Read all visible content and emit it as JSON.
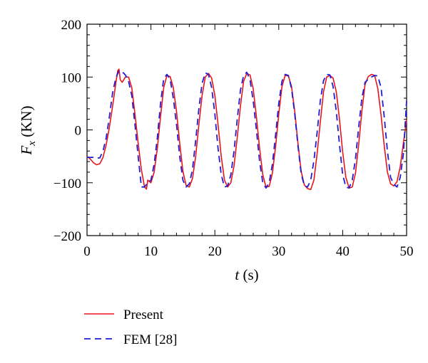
{
  "chart_data": {
    "type": "line",
    "xlabel": {
      "var": "t",
      "unit": " (s)"
    },
    "ylabel": {
      "var": "F",
      "sub": "x",
      "unit": " (KN)"
    },
    "xlim": [
      0,
      50
    ],
    "ylim": [
      -200,
      200
    ],
    "xticks": [
      0,
      10,
      20,
      30,
      40,
      50
    ],
    "yticks": [
      -200,
      -100,
      0,
      100,
      200
    ],
    "x_minor_step": 2,
    "y_minor_step": 20,
    "grid": false,
    "legend_position": "bottom-left, below plot",
    "series": [
      {
        "name": "Present",
        "color": "#e8141c",
        "dash": "solid",
        "points": [
          [
            0,
            -50
          ],
          [
            0.5,
            -55
          ],
          [
            1,
            -62
          ],
          [
            1.5,
            -66
          ],
          [
            2,
            -64
          ],
          [
            2.5,
            -52
          ],
          [
            3,
            -28
          ],
          [
            3.5,
            5
          ],
          [
            4,
            45
          ],
          [
            4.5,
            88
          ],
          [
            4.8,
            112
          ],
          [
            5.0,
            115
          ],
          [
            5.2,
            95
          ],
          [
            5.5,
            90
          ],
          [
            6,
            100
          ],
          [
            6.5,
            100
          ],
          [
            7,
            80
          ],
          [
            7.5,
            30
          ],
          [
            8,
            -25
          ],
          [
            8.5,
            -75
          ],
          [
            9,
            -108
          ],
          [
            9.3,
            -112
          ],
          [
            9.5,
            -95
          ],
          [
            10,
            -100
          ],
          [
            10.5,
            -80
          ],
          [
            11,
            -35
          ],
          [
            11.5,
            25
          ],
          [
            12,
            80
          ],
          [
            12.5,
            103
          ],
          [
            13,
            101
          ],
          [
            13.5,
            80
          ],
          [
            14,
            35
          ],
          [
            14.5,
            -25
          ],
          [
            15,
            -78
          ],
          [
            15.5,
            -105
          ],
          [
            16,
            -108
          ],
          [
            16.5,
            -92
          ],
          [
            17,
            -50
          ],
          [
            17.5,
            10
          ],
          [
            18,
            65
          ],
          [
            18.5,
            100
          ],
          [
            19,
            107
          ],
          [
            19.5,
            98
          ],
          [
            20,
            65
          ],
          [
            20.5,
            10
          ],
          [
            21,
            -50
          ],
          [
            21.5,
            -95
          ],
          [
            22,
            -108
          ],
          [
            22.5,
            -100
          ],
          [
            23,
            -68
          ],
          [
            23.5,
            -15
          ],
          [
            24,
            45
          ],
          [
            24.5,
            92
          ],
          [
            25,
            107
          ],
          [
            25.5,
            104
          ],
          [
            26,
            78
          ],
          [
            26.5,
            25
          ],
          [
            27,
            -35
          ],
          [
            27.5,
            -85
          ],
          [
            28,
            -108
          ],
          [
            28.5,
            -107
          ],
          [
            29,
            -82
          ],
          [
            29.5,
            -32
          ],
          [
            30,
            30
          ],
          [
            30.5,
            82
          ],
          [
            31,
            103
          ],
          [
            31.5,
            102
          ],
          [
            32,
            82
          ],
          [
            32.5,
            35
          ],
          [
            33,
            -25
          ],
          [
            33.5,
            -78
          ],
          [
            34,
            -104
          ],
          [
            34.5,
            -111
          ],
          [
            35,
            -113
          ],
          [
            35.5,
            -95
          ],
          [
            36,
            -45
          ],
          [
            36.5,
            15
          ],
          [
            37,
            72
          ],
          [
            37.5,
            100
          ],
          [
            38,
            103
          ],
          [
            38.5,
            98
          ],
          [
            39,
            72
          ],
          [
            39.5,
            20
          ],
          [
            40,
            -42
          ],
          [
            40.5,
            -90
          ],
          [
            41,
            -110
          ],
          [
            41.5,
            -108
          ],
          [
            42,
            -82
          ],
          [
            42.5,
            -28
          ],
          [
            43,
            35
          ],
          [
            43.5,
            86
          ],
          [
            44,
            101
          ],
          [
            44.5,
            105
          ],
          [
            45,
            103
          ],
          [
            45.5,
            78
          ],
          [
            46,
            28
          ],
          [
            46.5,
            -30
          ],
          [
            47,
            -80
          ],
          [
            47.5,
            -102
          ],
          [
            48,
            -106
          ],
          [
            48.5,
            -98
          ],
          [
            49,
            -70
          ],
          [
            49.5,
            -25
          ],
          [
            50,
            20
          ]
        ]
      },
      {
        "name": "FEM [28]",
        "color": "#1f1fd6",
        "dash": "dashed",
        "points": [
          [
            0,
            -52
          ],
          [
            0.5,
            -52
          ],
          [
            1,
            -52
          ],
          [
            1.5,
            -53
          ],
          [
            2,
            -53
          ],
          [
            2.5,
            -40
          ],
          [
            3,
            -15
          ],
          [
            3.5,
            25
          ],
          [
            4,
            70
          ],
          [
            4.5,
            98
          ],
          [
            5,
            112
          ],
          [
            5.5,
            110
          ],
          [
            6,
            104
          ],
          [
            6.5,
            92
          ],
          [
            7,
            65
          ],
          [
            7.5,
            10
          ],
          [
            8,
            -50
          ],
          [
            8.5,
            -108
          ],
          [
            9,
            -108
          ],
          [
            9.5,
            -100
          ],
          [
            10,
            -95
          ],
          [
            10.5,
            -65
          ],
          [
            11,
            -15
          ],
          [
            11.5,
            50
          ],
          [
            12,
            97
          ],
          [
            12.5,
            105
          ],
          [
            13,
            96
          ],
          [
            13.5,
            60
          ],
          [
            14,
            10
          ],
          [
            14.5,
            -50
          ],
          [
            15,
            -95
          ],
          [
            15.5,
            -108
          ],
          [
            16,
            -102
          ],
          [
            16.5,
            -75
          ],
          [
            17,
            -20
          ],
          [
            17.5,
            40
          ],
          [
            18,
            88
          ],
          [
            18.5,
            108
          ],
          [
            19,
            105
          ],
          [
            19.5,
            80
          ],
          [
            20,
            30
          ],
          [
            20.5,
            -35
          ],
          [
            21,
            -85
          ],
          [
            21.5,
            -108
          ],
          [
            22,
            -106
          ],
          [
            22.5,
            -85
          ],
          [
            23,
            -40
          ],
          [
            23.5,
            20
          ],
          [
            24,
            75
          ],
          [
            24.5,
            103
          ],
          [
            25,
            109
          ],
          [
            25.5,
            95
          ],
          [
            26,
            55
          ],
          [
            26.5,
            0
          ],
          [
            27,
            -60
          ],
          [
            27.5,
            -100
          ],
          [
            28,
            -110
          ],
          [
            28.5,
            -100
          ],
          [
            29,
            -65
          ],
          [
            29.5,
            -10
          ],
          [
            30,
            50
          ],
          [
            30.5,
            92
          ],
          [
            31,
            105
          ],
          [
            31.5,
            103
          ],
          [
            32,
            78
          ],
          [
            32.5,
            30
          ],
          [
            33,
            -30
          ],
          [
            33.5,
            -82
          ],
          [
            34,
            -106
          ],
          [
            34.5,
            -108
          ],
          [
            35,
            -95
          ],
          [
            35.5,
            -58
          ],
          [
            36,
            -5
          ],
          [
            36.5,
            55
          ],
          [
            37,
            93
          ],
          [
            37.5,
            105
          ],
          [
            38,
            104
          ],
          [
            38.5,
            82
          ],
          [
            39,
            35
          ],
          [
            39.5,
            -28
          ],
          [
            40,
            -85
          ],
          [
            40.5,
            -108
          ],
          [
            41,
            -110
          ],
          [
            41.5,
            -95
          ],
          [
            42,
            -55
          ],
          [
            42.5,
            5
          ],
          [
            43,
            60
          ],
          [
            43.5,
            90
          ],
          [
            44,
            96
          ],
          [
            44.5,
            100
          ],
          [
            45,
            103
          ],
          [
            45.5,
            102
          ],
          [
            46,
            80
          ],
          [
            46.5,
            25
          ],
          [
            47,
            -40
          ],
          [
            47.5,
            -90
          ],
          [
            48,
            -103
          ],
          [
            48.5,
            -108
          ],
          [
            49,
            -90
          ],
          [
            49.5,
            -45
          ],
          [
            50,
            55
          ]
        ]
      }
    ]
  }
}
